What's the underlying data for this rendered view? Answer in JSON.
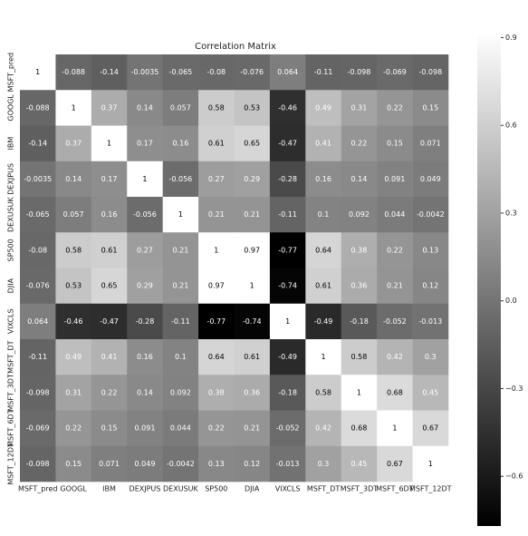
{
  "chart_data": {
    "type": "heatmap",
    "title": "Correlation Matrix",
    "categories": [
      "MSFT_pred",
      "GOOGL",
      "IBM",
      "DEXJPUS",
      "DEXUSUK",
      "SP500",
      "DJIA",
      "VIXCLS",
      "MSFT_DT",
      "MSFT_3DT",
      "MSFT_6DT",
      "MSFT_12DT"
    ],
    "z": [
      [
        1,
        -0.088,
        -0.14,
        -0.0035,
        -0.065,
        -0.08,
        -0.076,
        0.064,
        -0.11,
        -0.098,
        -0.069,
        -0.098
      ],
      [
        -0.088,
        1,
        0.37,
        0.14,
        0.057,
        0.58,
        0.53,
        -0.46,
        0.49,
        0.31,
        0.22,
        0.15
      ],
      [
        -0.14,
        0.37,
        1,
        0.17,
        0.16,
        0.61,
        0.65,
        -0.47,
        0.41,
        0.22,
        0.15,
        0.071
      ],
      [
        -0.0035,
        0.14,
        0.17,
        1,
        -0.056,
        0.27,
        0.29,
        -0.28,
        0.16,
        0.14,
        0.091,
        0.049
      ],
      [
        -0.065,
        0.057,
        0.16,
        -0.056,
        1,
        0.21,
        0.21,
        -0.11,
        0.1,
        0.092,
        0.044,
        -0.0042
      ],
      [
        -0.08,
        0.58,
        0.61,
        0.27,
        0.21,
        1,
        0.97,
        -0.77,
        0.64,
        0.38,
        0.22,
        0.13
      ],
      [
        -0.076,
        0.53,
        0.65,
        0.29,
        0.21,
        0.97,
        1,
        -0.74,
        0.61,
        0.36,
        0.21,
        0.12
      ],
      [
        0.064,
        -0.46,
        -0.47,
        -0.28,
        -0.11,
        -0.77,
        -0.74,
        1,
        -0.49,
        -0.18,
        -0.052,
        -0.013
      ],
      [
        -0.11,
        0.49,
        0.41,
        0.16,
        0.1,
        0.64,
        0.61,
        -0.49,
        1,
        0.58,
        0.42,
        0.3
      ],
      [
        -0.098,
        0.31,
        0.22,
        0.14,
        0.092,
        0.38,
        0.36,
        -0.18,
        0.58,
        1,
        0.68,
        0.45
      ],
      [
        -0.069,
        0.22,
        0.15,
        0.091,
        0.044,
        0.22,
        0.21,
        -0.052,
        0.42,
        0.68,
        1,
        0.67
      ],
      [
        -0.098,
        0.15,
        0.071,
        0.049,
        -0.0042,
        0.13,
        0.12,
        -0.013,
        0.3,
        0.45,
        0.67,
        1
      ]
    ],
    "clim": [
      -0.77,
      0.92
    ],
    "cticks": [
      0.9,
      0.6,
      0.3,
      {
        "value": 0,
        "label": "0.0"
      },
      {
        "value": -0.3,
        "label": "−0.3"
      },
      {
        "value": -0.6,
        "label": "−0.6"
      }
    ],
    "colormap": [
      "#000000",
      "#ffffff"
    ]
  }
}
